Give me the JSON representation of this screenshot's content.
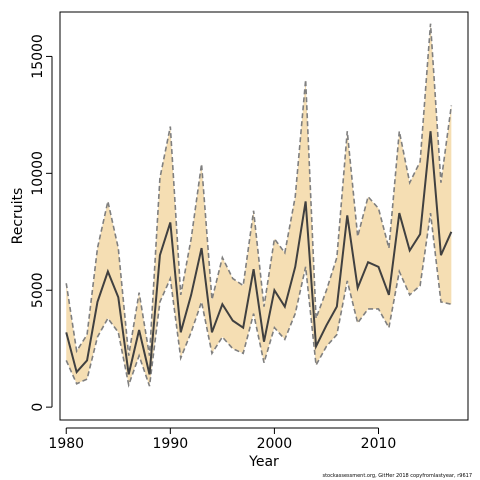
{
  "chart_data": {
    "type": "line",
    "xlabel": "Year",
    "ylabel": "Recruits",
    "xlim": [
      1979.4,
      2018.6
    ],
    "ylim": [
      -550,
      16900
    ],
    "x_ticks": [
      1980,
      1990,
      2000,
      2010
    ],
    "y_ticks": [
      0,
      5000,
      10000,
      15000
    ],
    "grid": false,
    "colors": {
      "band": "#f5deb3",
      "bound_line": "#7f7f7f",
      "estimate_line": "#404040"
    },
    "x": [
      1980,
      1981,
      1982,
      1983,
      1984,
      1985,
      1986,
      1987,
      1988,
      1989,
      1990,
      1991,
      1992,
      1993,
      1994,
      1995,
      1996,
      1997,
      1998,
      1999,
      2000,
      2001,
      2002,
      2003,
      2004,
      2005,
      2006,
      2007,
      2008,
      2009,
      2010,
      2011,
      2012,
      2013,
      2014,
      2015,
      2016,
      2017
    ],
    "series": [
      {
        "role": "estimate",
        "values": [
          3200,
          1500,
          2000,
          4500,
          5800,
          4700,
          1400,
          3300,
          1400,
          6500,
          7900,
          3200,
          4800,
          6800,
          3200,
          4400,
          3700,
          3400,
          5900,
          2800,
          5000,
          4300,
          6000,
          8800,
          2600,
          3500,
          4300,
          8200,
          5100,
          6200,
          6000,
          4800,
          8300,
          6700,
          7400,
          11800,
          6500,
          7500
        ]
      },
      {
        "role": "lower",
        "values": [
          2000,
          1000,
          1200,
          3000,
          3800,
          3200,
          950,
          2200,
          900,
          4500,
          5500,
          2100,
          3200,
          4500,
          2300,
          3000,
          2500,
          2300,
          4000,
          1900,
          3400,
          2900,
          4000,
          6000,
          1800,
          2600,
          3100,
          5400,
          3600,
          4200,
          4200,
          3400,
          5800,
          4800,
          5200,
          8300,
          4500,
          4400
        ]
      },
      {
        "role": "upper",
        "values": [
          5300,
          2400,
          3100,
          6800,
          8800,
          6800,
          2200,
          4900,
          2200,
          9800,
          12000,
          4800,
          7200,
          10400,
          4600,
          6400,
          5500,
          5200,
          8400,
          4300,
          7200,
          6600,
          9000,
          14000,
          3800,
          5000,
          6400,
          11800,
          7300,
          9000,
          8500,
          6800,
          11800,
          9600,
          10500,
          16400,
          9600,
          12900
        ]
      }
    ],
    "footer_text": "stockassessment.org, GitHer 2018 copyfromlastyear, r9617"
  }
}
